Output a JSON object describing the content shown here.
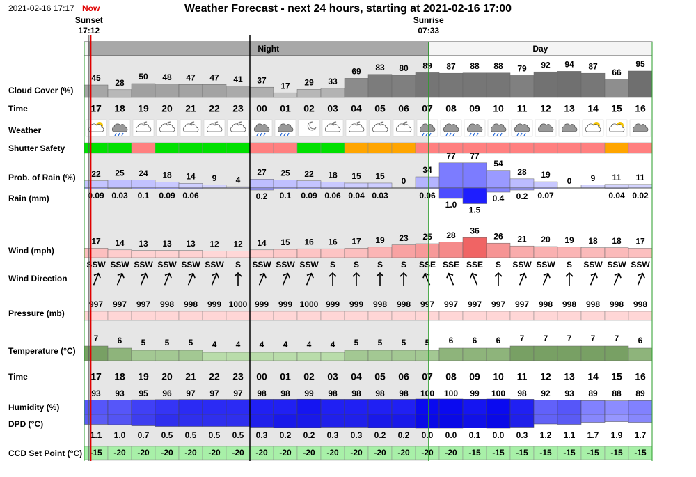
{
  "header": {
    "timestamp": "2021-02-16 17:17",
    "now": "Now",
    "title": "Weather Forecast - next 24 hours, starting at 2021-02-16 17:00",
    "sunset": {
      "label": "Sunset",
      "time": "17:12"
    },
    "sunrise": {
      "label": "Sunrise",
      "time": "07:33"
    },
    "night": "Night",
    "day": "Day"
  },
  "hours": [
    "17",
    "18",
    "19",
    "20",
    "21",
    "22",
    "23",
    "00",
    "01",
    "02",
    "03",
    "04",
    "05",
    "06",
    "07",
    "08",
    "09",
    "10",
    "11",
    "12",
    "13",
    "14",
    "15",
    "16"
  ],
  "rows": {
    "cloud_cover": {
      "label": "Cloud Cover (%)",
      "values": [
        45,
        28,
        50,
        48,
        47,
        47,
        41,
        37,
        17,
        29,
        33,
        69,
        83,
        80,
        89,
        87,
        88,
        88,
        79,
        92,
        94,
        87,
        66,
        95
      ]
    },
    "time": {
      "label": "Time"
    },
    "weather": {
      "label": "Weather"
    },
    "shutter_safety": {
      "label": "Shutter Safety",
      "colors": [
        "#00e000",
        "#00e000",
        "#ff8080",
        "#00e000",
        "#00e000",
        "#00e000",
        "#00e000",
        "#ff8080",
        "#ff8080",
        "#00e000",
        "#00e000",
        "#ffa500",
        "#ffa500",
        "#ffa500",
        "#ff8080",
        "#ff8080",
        "#ff8080",
        "#ff8080",
        "#ff8080",
        "#ff8080",
        "#ff8080",
        "#ff8080",
        "#ffa500",
        "#ff8080"
      ]
    },
    "prob_rain": {
      "label": "Prob. of Rain (%)",
      "values": [
        22,
        25,
        24,
        18,
        14,
        9,
        4,
        27,
        25,
        22,
        18,
        15,
        15,
        0,
        34,
        77,
        77,
        54,
        28,
        19,
        0,
        9,
        11,
        11
      ]
    },
    "rain": {
      "label": "Rain (mm)",
      "values": [
        0.09,
        0.03,
        0.1,
        0.09,
        0.06,
        null,
        null,
        0.2,
        0.1,
        0.09,
        0.06,
        0.04,
        0.03,
        null,
        0.06,
        1.0,
        1.5,
        0.4,
        0.2,
        0.07,
        null,
        null,
        0.04,
        0.02
      ],
      "value_labels": [
        null,
        null,
        null,
        null,
        null,
        null,
        null,
        null,
        null,
        null,
        null,
        null,
        null,
        null,
        null,
        "1.0",
        null,
        null,
        null,
        null,
        null,
        null,
        null,
        null
      ]
    },
    "wind": {
      "label": "Wind (mph)",
      "values": [
        17,
        14,
        13,
        13,
        13,
        12,
        12,
        14,
        15,
        16,
        16,
        17,
        19,
        23,
        25,
        28,
        36,
        26,
        21,
        20,
        19,
        18,
        18,
        17
      ]
    },
    "wind_direction": {
      "label": "Wind Direction",
      "values": [
        "SSW",
        "SSW",
        "SSW",
        "SSW",
        "SSW",
        "SSW",
        "S",
        "SSW",
        "SSW",
        "SSW",
        "S",
        "S",
        "S",
        "S",
        "SSE",
        "SSE",
        "SSE",
        "S",
        "SSW",
        "SSW",
        "S",
        "SSW",
        "SSW",
        "SSW"
      ]
    },
    "pressure": {
      "label": "Pressure (mb)",
      "values": [
        997,
        997,
        997,
        998,
        998,
        999,
        1000,
        999,
        999,
        1000,
        999,
        999,
        998,
        998,
        997,
        997,
        997,
        997,
        997,
        998,
        998,
        998,
        998,
        998
      ]
    },
    "temperature": {
      "label": "Temperature (°C)",
      "values": [
        7,
        6,
        5,
        5,
        5,
        4,
        4,
        4,
        4,
        4,
        4,
        5,
        5,
        5,
        5,
        6,
        6,
        6,
        7,
        7,
        7,
        7,
        7,
        6
      ]
    },
    "humidity": {
      "label": "Humidity (%)",
      "values": [
        93,
        93,
        95,
        96,
        97,
        97,
        97,
        98,
        98,
        99,
        98,
        98,
        98,
        98,
        100,
        100,
        99,
        100,
        98,
        92,
        93,
        89,
        88,
        89
      ]
    },
    "dpd": {
      "label": "DPD (°C)",
      "values": [
        1.1,
        1.0,
        0.7,
        0.5,
        0.5,
        0.5,
        0.5,
        0.3,
        0.2,
        0.2,
        0.3,
        0.3,
        0.2,
        0.2,
        0.0,
        0.0,
        0.1,
        0.0,
        0.3,
        1.2,
        1.1,
        1.7,
        1.9,
        1.7
      ],
      "value_labels": [
        null,
        "1.0",
        null,
        null,
        null,
        null,
        null,
        null,
        null,
        null,
        null,
        null,
        null,
        null,
        "0.0",
        "0.0",
        null,
        "0.0",
        null,
        null,
        null,
        null,
        null,
        null
      ]
    },
    "ccd": {
      "label": "CCD Set Point (°C)",
      "values": [
        -15,
        -20,
        -20,
        -20,
        -20,
        -20,
        -20,
        -20,
        -20,
        -20,
        -20,
        -20,
        -20,
        -20,
        -20,
        -20,
        -15,
        -15,
        -15,
        -15,
        -15,
        -15,
        -15,
        -15
      ]
    }
  }
}
